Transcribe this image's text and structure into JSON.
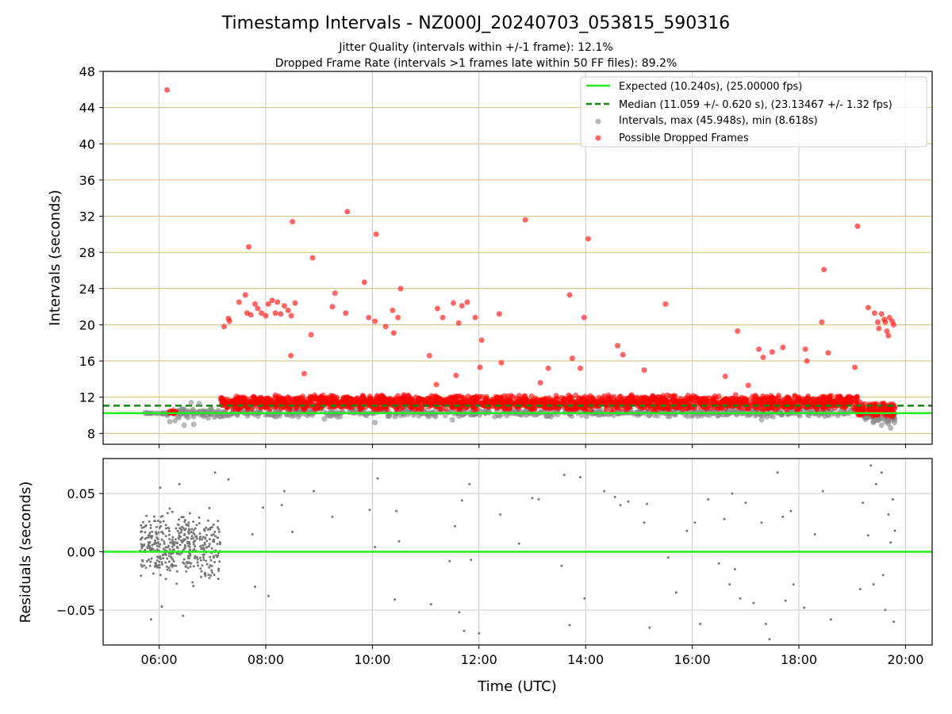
{
  "chart_data": [
    {
      "type": "scatter",
      "title": "Timestamp Intervals - NZ000J_20240703_053815_590316",
      "subtitle_lines": [
        "Jitter Quality (intervals within +/-1 frame): 12.1%",
        "Dropped Frame Rate (intervals >1 frames late within 50 FF files): 89.2%"
      ],
      "xlabel": "",
      "ylabel": "Intervals (seconds)",
      "xlim_hours": [
        4.95,
        20.5
      ],
      "ylim": [
        6.8,
        48
      ],
      "x_ticks": [
        6,
        8,
        10,
        12,
        14,
        16,
        18,
        20
      ],
      "y_ticks": [
        8,
        12,
        16,
        20,
        24,
        28,
        32,
        36,
        40,
        44,
        48
      ],
      "y_tick_labels": [
        "8",
        "12",
        "16",
        "20",
        "24",
        "28",
        "32",
        "36",
        "40",
        "44",
        "48"
      ],
      "grid": true,
      "legend_position": "top-right",
      "colors": {
        "expected": "#22ee22",
        "median": "#118811",
        "intervals": "#888888",
        "dropped": "#ff0000",
        "hgrid": "#d4bf7a",
        "vgrid": "#cccccc"
      },
      "reference_lines": [
        {
          "name": "Expected (10.240s), (25.00000 fps)",
          "y": 10.24,
          "style": "solid",
          "color": "#22ee22"
        },
        {
          "name": "Median (11.059 +/- 0.620 s), (23.13467 +/- 1.32 fps)",
          "y": 11.059,
          "style": "dashed",
          "color": "#118811"
        }
      ],
      "series": [
        {
          "name": "Intervals, max (45.948s), min (8.618s)",
          "color": "#888888",
          "bands": [
            {
              "x": [
                5.65,
                6.15
              ],
              "y": [
                10.15,
                10.3
              ],
              "n": 20
            },
            {
              "x": [
                6.15,
                7.15
              ],
              "y": [
                9.6,
                10.9
              ],
              "n": 70
            },
            {
              "x": [
                7.15,
                19.2
              ],
              "y": [
                9.8,
                10.8
              ],
              "n": 650
            },
            {
              "x": [
                19.2,
                19.8
              ],
              "y": [
                9.0,
                10.6
              ],
              "n": 70
            }
          ],
          "points": [
            {
              "x": 6.2,
              "y": 9.3
            },
            {
              "x": 6.3,
              "y": 9.4
            },
            {
              "x": 6.47,
              "y": 8.9
            },
            {
              "x": 6.65,
              "y": 9.0
            },
            {
              "x": 6.6,
              "y": 11.4
            },
            {
              "x": 6.75,
              "y": 11.3
            },
            {
              "x": 9.1,
              "y": 9.6
            },
            {
              "x": 10.05,
              "y": 9.2
            },
            {
              "x": 11.5,
              "y": 9.5
            },
            {
              "x": 17.3,
              "y": 9.5
            },
            {
              "x": 19.55,
              "y": 8.9
            },
            {
              "x": 19.72,
              "y": 8.6
            }
          ]
        },
        {
          "name": "Possible Dropped Frames",
          "color": "#ff0000",
          "bands": [
            {
              "x": [
                6.15,
                6.32
              ],
              "y": [
                10.15,
                10.5
              ],
              "n": 14
            },
            {
              "x": [
                7.15,
                19.1
              ],
              "y": [
                10.5,
                12.3
              ],
              "n": 1900
            },
            {
              "x": [
                19.1,
                19.8
              ],
              "y": [
                9.8,
                11.5
              ],
              "n": 120
            }
          ],
          "points": [
            {
              "x": 6.15,
              "y": 45.95
            },
            {
              "x": 7.22,
              "y": 19.8
            },
            {
              "x": 7.3,
              "y": 20.7
            },
            {
              "x": 7.32,
              "y": 20.4
            },
            {
              "x": 7.5,
              "y": 22.5
            },
            {
              "x": 7.62,
              "y": 23.3
            },
            {
              "x": 7.68,
              "y": 28.6
            },
            {
              "x": 7.65,
              "y": 21.3
            },
            {
              "x": 7.72,
              "y": 21.1
            },
            {
              "x": 7.8,
              "y": 22.3
            },
            {
              "x": 7.85,
              "y": 21.8
            },
            {
              "x": 7.92,
              "y": 21.3
            },
            {
              "x": 8.0,
              "y": 21.0
            },
            {
              "x": 8.05,
              "y": 22.3
            },
            {
              "x": 8.12,
              "y": 22.7
            },
            {
              "x": 8.18,
              "y": 21.3
            },
            {
              "x": 8.22,
              "y": 22.5
            },
            {
              "x": 8.28,
              "y": 21.2
            },
            {
              "x": 8.35,
              "y": 22.1
            },
            {
              "x": 8.42,
              "y": 21.6
            },
            {
              "x": 8.48,
              "y": 21.0
            },
            {
              "x": 8.55,
              "y": 22.4
            },
            {
              "x": 8.5,
              "y": 31.4
            },
            {
              "x": 8.47,
              "y": 16.6
            },
            {
              "x": 8.72,
              "y": 14.6
            },
            {
              "x": 8.85,
              "y": 18.9
            },
            {
              "x": 8.88,
              "y": 27.4
            },
            {
              "x": 9.25,
              "y": 22.0
            },
            {
              "x": 9.3,
              "y": 23.5
            },
            {
              "x": 9.5,
              "y": 21.3
            },
            {
              "x": 9.53,
              "y": 32.5
            },
            {
              "x": 9.85,
              "y": 24.7
            },
            {
              "x": 9.93,
              "y": 20.8
            },
            {
              "x": 10.05,
              "y": 20.4
            },
            {
              "x": 10.07,
              "y": 30.0
            },
            {
              "x": 10.25,
              "y": 19.8
            },
            {
              "x": 10.38,
              "y": 21.6
            },
            {
              "x": 10.4,
              "y": 19.1
            },
            {
              "x": 10.48,
              "y": 20.8
            },
            {
              "x": 10.53,
              "y": 24.0
            },
            {
              "x": 11.07,
              "y": 16.6
            },
            {
              "x": 11.2,
              "y": 13.4
            },
            {
              "x": 11.22,
              "y": 21.8
            },
            {
              "x": 11.32,
              "y": 20.8
            },
            {
              "x": 11.52,
              "y": 22.4
            },
            {
              "x": 11.57,
              "y": 14.4
            },
            {
              "x": 11.62,
              "y": 20.2
            },
            {
              "x": 11.68,
              "y": 22.1
            },
            {
              "x": 11.78,
              "y": 22.5
            },
            {
              "x": 11.93,
              "y": 20.8
            },
            {
              "x": 12.05,
              "y": 18.3
            },
            {
              "x": 12.02,
              "y": 15.3
            },
            {
              "x": 12.38,
              "y": 21.2
            },
            {
              "x": 12.42,
              "y": 15.8
            },
            {
              "x": 12.87,
              "y": 31.6
            },
            {
              "x": 13.15,
              "y": 13.6
            },
            {
              "x": 13.3,
              "y": 15.2
            },
            {
              "x": 13.7,
              "y": 23.3
            },
            {
              "x": 13.75,
              "y": 16.3
            },
            {
              "x": 13.9,
              "y": 15.2
            },
            {
              "x": 13.97,
              "y": 20.8
            },
            {
              "x": 14.05,
              "y": 29.5
            },
            {
              "x": 14.6,
              "y": 17.7
            },
            {
              "x": 14.7,
              "y": 16.7
            },
            {
              "x": 15.1,
              "y": 15.0
            },
            {
              "x": 15.5,
              "y": 22.3
            },
            {
              "x": 16.62,
              "y": 14.3
            },
            {
              "x": 16.85,
              "y": 19.3
            },
            {
              "x": 17.05,
              "y": 13.3
            },
            {
              "x": 17.25,
              "y": 17.3
            },
            {
              "x": 17.33,
              "y": 16.4
            },
            {
              "x": 17.5,
              "y": 17.0
            },
            {
              "x": 17.7,
              "y": 17.5
            },
            {
              "x": 18.12,
              "y": 17.3
            },
            {
              "x": 18.15,
              "y": 16.0
            },
            {
              "x": 18.43,
              "y": 20.3
            },
            {
              "x": 18.47,
              "y": 26.1
            },
            {
              "x": 18.55,
              "y": 16.9
            },
            {
              "x": 19.05,
              "y": 15.3
            },
            {
              "x": 19.1,
              "y": 30.9
            },
            {
              "x": 19.3,
              "y": 21.9
            },
            {
              "x": 19.42,
              "y": 21.3
            },
            {
              "x": 19.48,
              "y": 20.3
            },
            {
              "x": 19.5,
              "y": 19.6
            },
            {
              "x": 19.55,
              "y": 21.2
            },
            {
              "x": 19.6,
              "y": 20.6
            },
            {
              "x": 19.65,
              "y": 19.3
            },
            {
              "x": 19.68,
              "y": 18.8
            },
            {
              "x": 19.7,
              "y": 20.8
            },
            {
              "x": 19.75,
              "y": 20.4
            },
            {
              "x": 19.78,
              "y": 20.0
            },
            {
              "x": 19.62,
              "y": 20.3
            }
          ]
        }
      ]
    },
    {
      "type": "scatter",
      "title": "",
      "xlabel": "Time (UTC)",
      "ylabel": "Residuals (seconds)",
      "xlim_hours": [
        4.95,
        20.5
      ],
      "ylim": [
        -0.08,
        0.08
      ],
      "x_ticks": [
        6,
        8,
        10,
        12,
        14,
        16,
        18,
        20
      ],
      "x_tick_labels": [
        "06:00",
        "08:00",
        "10:00",
        "12:00",
        "14:00",
        "16:00",
        "18:00",
        "20:00"
      ],
      "y_ticks": [
        -0.05,
        0.0,
        0.05
      ],
      "y_tick_labels": [
        "−0.05",
        "0.00",
        "0.05"
      ],
      "grid": true,
      "colors": {
        "zero_line": "#22ee22",
        "points": "#777777",
        "grid": "#cccccc"
      },
      "reference_lines": [
        {
          "y": 0.0,
          "color": "#22ee22"
        }
      ],
      "series": [
        {
          "color": "#777777",
          "bands": [
            {
              "x": [
                5.65,
                7.15
              ],
              "y": [
                -0.03,
                0.05
              ],
              "n": 430,
              "center": 0.005
            }
          ],
          "points": [
            {
              "x": 5.85,
              "y": -0.058
            },
            {
              "x": 6.05,
              "y": -0.047
            },
            {
              "x": 6.45,
              "y": -0.055
            },
            {
              "x": 6.02,
              "y": 0.055
            },
            {
              "x": 6.38,
              "y": 0.058
            },
            {
              "x": 7.05,
              "y": 0.068
            },
            {
              "x": 7.3,
              "y": 0.062
            },
            {
              "x": 7.75,
              "y": 0.015
            },
            {
              "x": 7.8,
              "y": -0.03
            },
            {
              "x": 7.95,
              "y": 0.038
            },
            {
              "x": 8.05,
              "y": -0.038
            },
            {
              "x": 8.3,
              "y": 0.04
            },
            {
              "x": 8.35,
              "y": 0.052
            },
            {
              "x": 8.5,
              "y": 0.017
            },
            {
              "x": 8.9,
              "y": 0.052
            },
            {
              "x": 9.25,
              "y": 0.03
            },
            {
              "x": 9.95,
              "y": 0.036
            },
            {
              "x": 10.05,
              "y": 0.004
            },
            {
              "x": 10.1,
              "y": 0.063
            },
            {
              "x": 10.42,
              "y": -0.041
            },
            {
              "x": 10.45,
              "y": 0.035
            },
            {
              "x": 10.5,
              "y": 0.009
            },
            {
              "x": 11.1,
              "y": -0.045
            },
            {
              "x": 11.45,
              "y": -0.008
            },
            {
              "x": 11.55,
              "y": 0.022
            },
            {
              "x": 11.63,
              "y": -0.052
            },
            {
              "x": 11.68,
              "y": 0.044
            },
            {
              "x": 11.72,
              "y": -0.068
            },
            {
              "x": 11.82,
              "y": 0.058
            },
            {
              "x": 11.85,
              "y": -0.007
            },
            {
              "x": 12.0,
              "y": -0.07
            },
            {
              "x": 12.4,
              "y": 0.032
            },
            {
              "x": 12.75,
              "y": 0.007
            },
            {
              "x": 13.0,
              "y": 0.046
            },
            {
              "x": 13.12,
              "y": 0.045
            },
            {
              "x": 13.55,
              "y": -0.012
            },
            {
              "x": 13.6,
              "y": 0.066
            },
            {
              "x": 13.7,
              "y": -0.063
            },
            {
              "x": 13.9,
              "y": 0.064
            },
            {
              "x": 13.98,
              "y": -0.04
            },
            {
              "x": 14.35,
              "y": 0.052
            },
            {
              "x": 14.55,
              "y": 0.047
            },
            {
              "x": 14.65,
              "y": 0.04
            },
            {
              "x": 14.8,
              "y": 0.043
            },
            {
              "x": 15.1,
              "y": 0.025
            },
            {
              "x": 15.15,
              "y": 0.041
            },
            {
              "x": 15.2,
              "y": -0.065
            },
            {
              "x": 15.55,
              "y": -0.005
            },
            {
              "x": 15.7,
              "y": -0.035
            },
            {
              "x": 15.9,
              "y": 0.018
            },
            {
              "x": 16.05,
              "y": 0.025
            },
            {
              "x": 16.15,
              "y": -0.062
            },
            {
              "x": 16.3,
              "y": 0.045
            },
            {
              "x": 16.5,
              "y": -0.01
            },
            {
              "x": 16.6,
              "y": 0.028
            },
            {
              "x": 16.7,
              "y": -0.028
            },
            {
              "x": 16.75,
              "y": 0.05
            },
            {
              "x": 16.8,
              "y": -0.015
            },
            {
              "x": 16.9,
              "y": -0.04
            },
            {
              "x": 17.0,
              "y": 0.042
            },
            {
              "x": 17.15,
              "y": -0.044
            },
            {
              "x": 17.3,
              "y": 0.025
            },
            {
              "x": 17.38,
              "y": -0.062
            },
            {
              "x": 17.45,
              "y": -0.075
            },
            {
              "x": 17.6,
              "y": 0.068
            },
            {
              "x": 17.7,
              "y": 0.03
            },
            {
              "x": 17.75,
              "y": -0.042
            },
            {
              "x": 17.85,
              "y": 0.035
            },
            {
              "x": 17.9,
              "y": -0.028
            },
            {
              "x": 18.1,
              "y": -0.048
            },
            {
              "x": 18.3,
              "y": 0.015
            },
            {
              "x": 18.45,
              "y": 0.052
            },
            {
              "x": 18.6,
              "y": -0.058
            },
            {
              "x": 19.15,
              "y": -0.032
            },
            {
              "x": 19.2,
              "y": 0.042
            },
            {
              "x": 19.3,
              "y": 0.014
            },
            {
              "x": 19.4,
              "y": -0.028
            },
            {
              "x": 19.45,
              "y": 0.058
            },
            {
              "x": 19.55,
              "y": 0.068
            },
            {
              "x": 19.58,
              "y": -0.02
            },
            {
              "x": 19.62,
              "y": -0.05
            },
            {
              "x": 19.68,
              "y": 0.032
            },
            {
              "x": 19.72,
              "y": 0.008
            },
            {
              "x": 19.78,
              "y": -0.06
            },
            {
              "x": 19.76,
              "y": 0.045
            },
            {
              "x": 19.8,
              "y": 0.018
            },
            {
              "x": 19.35,
              "y": 0.074
            }
          ]
        }
      ]
    }
  ]
}
